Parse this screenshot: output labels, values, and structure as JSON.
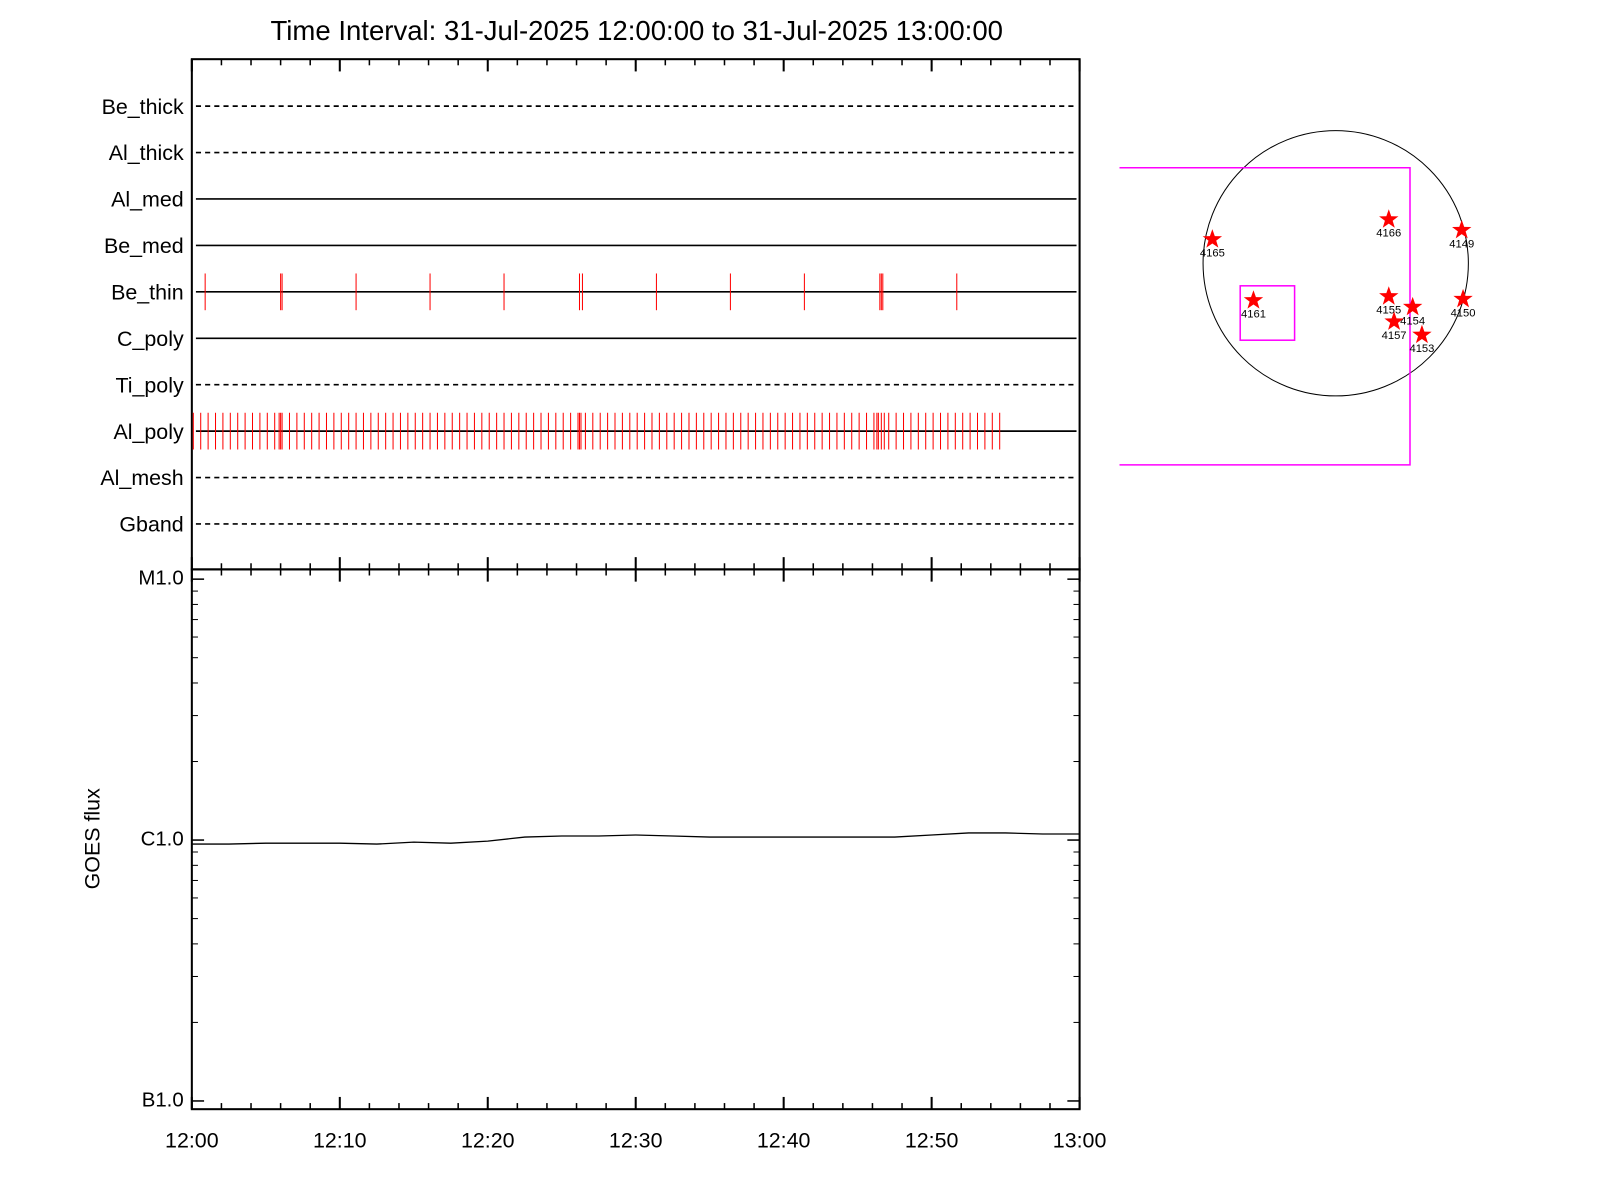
{
  "chart_data": [
    {
      "type": "event",
      "title": "Time Interval: 31-Jul-2025 12:00:00 to 31-Jul-2025 13:00:00",
      "xlim": [
        0,
        60
      ],
      "xticks": [
        0,
        10,
        20,
        30,
        40,
        50,
        60
      ],
      "xminorticks": [
        2,
        4,
        6,
        8,
        12,
        14,
        16,
        18,
        22,
        24,
        26,
        28,
        32,
        34,
        36,
        38,
        42,
        44,
        46,
        48,
        52,
        54,
        56,
        58
      ],
      "event_color": "#ff0000",
      "rows": [
        {
          "name": "Be_thick",
          "style": "dashed",
          "events": []
        },
        {
          "name": "Al_thick",
          "style": "dashed",
          "events": []
        },
        {
          "name": "Al_med",
          "style": "solid",
          "events": []
        },
        {
          "name": "Be_med",
          "style": "solid",
          "events": []
        },
        {
          "name": "Be_thin",
          "style": "solid",
          "events": [
            0.9,
            6.0,
            6.1,
            11.1,
            16.1,
            21.1,
            26.2,
            26.4,
            31.4,
            36.4,
            41.4,
            46.5,
            46.6,
            46.7,
            51.7
          ]
        },
        {
          "name": "C_poly",
          "style": "solid",
          "events": []
        },
        {
          "name": "Ti_poly",
          "style": "dashed",
          "events": []
        },
        {
          "name": "Al_poly",
          "style": "solid",
          "events": [
            0.1,
            0.6,
            1.1,
            1.6,
            2.1,
            2.6,
            3.1,
            3.6,
            4.1,
            4.6,
            5.1,
            5.6,
            5.9,
            6.0,
            6.1,
            6.6,
            7.1,
            7.6,
            8.1,
            8.6,
            9.1,
            9.6,
            10.1,
            10.6,
            11.1,
            11.6,
            12.1,
            12.6,
            13.1,
            13.6,
            14.1,
            14.6,
            15.1,
            15.6,
            16.1,
            16.6,
            17.1,
            17.6,
            18.1,
            18.6,
            19.1,
            19.6,
            20.1,
            20.6,
            21.1,
            21.6,
            22.1,
            22.6,
            23.1,
            23.6,
            24.1,
            24.6,
            25.1,
            25.6,
            26.1,
            26.2,
            26.3,
            26.6,
            27.1,
            27.6,
            28.1,
            28.6,
            29.1,
            29.6,
            30.1,
            30.6,
            31.1,
            31.6,
            32.1,
            32.6,
            33.1,
            33.6,
            34.1,
            34.6,
            35.1,
            35.6,
            36.1,
            36.6,
            37.1,
            37.6,
            38.1,
            38.6,
            39.1,
            39.6,
            40.1,
            40.6,
            41.1,
            41.6,
            42.1,
            42.6,
            43.1,
            43.6,
            44.1,
            44.6,
            45.1,
            45.6,
            46.1,
            46.3,
            46.4,
            46.6,
            46.8,
            47.1,
            47.6,
            48.1,
            48.6,
            49.1,
            49.6,
            50.1,
            50.6,
            51.1,
            51.6,
            52.1,
            52.6,
            53.1,
            53.6,
            54.1,
            54.6
          ]
        },
        {
          "name": "Al_mesh",
          "style": "dashed",
          "events": []
        },
        {
          "name": "Gband",
          "style": "dashed",
          "events": []
        }
      ]
    },
    {
      "type": "line",
      "ylabel": "GOES flux",
      "color": "#000000",
      "log": true,
      "x": [
        0,
        2.5,
        5,
        7.5,
        10,
        12.5,
        15,
        17.5,
        20,
        22.5,
        25,
        27.5,
        30,
        32.5,
        35,
        37.5,
        40,
        42.5,
        45,
        47.5,
        50,
        52.5,
        55,
        57.5,
        60
      ],
      "values": [
        9.65e-07,
        9.65e-07,
        9.73e-07,
        9.73e-07,
        9.73e-07,
        9.65e-07,
        9.82e-07,
        9.73e-07,
        9.91e-07,
        1.027e-06,
        1.036e-06,
        1.036e-06,
        1.046e-06,
        1.036e-06,
        1.027e-06,
        1.027e-06,
        1.027e-06,
        1.027e-06,
        1.027e-06,
        1.027e-06,
        1.046e-06,
        1.065e-06,
        1.065e-06,
        1.055e-06,
        1.055e-06
      ],
      "xlim": [
        0,
        60
      ],
      "xticks": [
        {
          "value": 0,
          "label": "12:00"
        },
        {
          "value": 10,
          "label": "12:10"
        },
        {
          "value": 20,
          "label": "12:20"
        },
        {
          "value": 30,
          "label": "12:30"
        },
        {
          "value": 40,
          "label": "12:40"
        },
        {
          "value": 50,
          "label": "12:50"
        },
        {
          "value": 60,
          "label": "13:00"
        }
      ],
      "xminorticks": [
        2,
        4,
        6,
        8,
        12,
        14,
        16,
        18,
        22,
        24,
        26,
        28,
        32,
        34,
        36,
        38,
        42,
        44,
        46,
        48,
        52,
        54,
        56,
        58
      ],
      "ylim": [
        9.3e-08,
        1.09e-05
      ],
      "yticks": [
        {
          "value": 1e-05,
          "label": "M1.0"
        },
        {
          "value": 1e-06,
          "label": "C1.0"
        },
        {
          "value": 1e-07,
          "label": "B1.0"
        }
      ],
      "yminorticks": [
        2e-07,
        3e-07,
        4e-07,
        5e-07,
        6e-07,
        7e-07,
        8e-07,
        9e-07,
        2e-06,
        3e-06,
        4e-06,
        5e-06,
        6e-06,
        7e-06,
        8e-06,
        9e-06
      ]
    },
    {
      "type": "map",
      "star_color": "#ff0000",
      "box_color": "#ff00ff",
      "fov": [
        -1.63,
        0.56,
        -1.52,
        0.72
      ],
      "zoom_box": [
        -0.72,
        -0.31,
        -0.58,
        -0.17
      ],
      "regions": [
        {
          "label": "4165",
          "x": -0.93,
          "y": 0.18
        },
        {
          "label": "4166",
          "x": 0.4,
          "y": 0.33
        },
        {
          "label": "4149",
          "x": 0.95,
          "y": 0.25
        },
        {
          "label": "4161",
          "x": -0.62,
          "y": -0.28
        },
        {
          "label": "4155",
          "x": 0.4,
          "y": -0.25
        },
        {
          "label": "4154",
          "x": 0.58,
          "y": -0.33
        },
        {
          "label": "4150",
          "x": 0.96,
          "y": -0.27
        },
        {
          "label": "4157",
          "x": 0.44,
          "y": -0.44
        },
        {
          "label": "4153",
          "x": 0.65,
          "y": -0.54
        }
      ]
    }
  ]
}
